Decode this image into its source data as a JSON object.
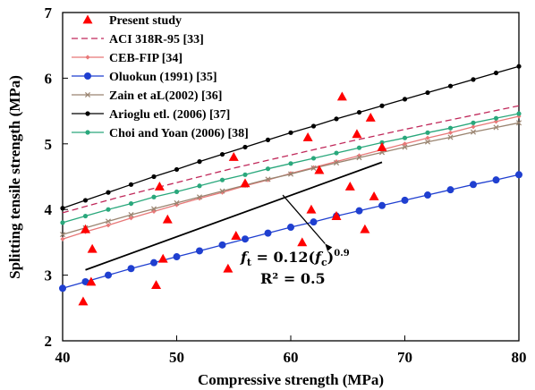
{
  "chart_data": {
    "type": "scatter",
    "xlabel": "Compressive strength (MPa)",
    "ylabel": "Splitting tensile strength (MPa)",
    "xlim": [
      40,
      80
    ],
    "ylim": [
      2,
      7
    ],
    "x_ticks": [
      "40",
      "50",
      "60",
      "70",
      "80"
    ],
    "y_ticks": [
      "2",
      "3",
      "4",
      "5",
      "6",
      "7"
    ],
    "legend_position": "top-left",
    "grid": false,
    "scatter_series": {
      "name": "Present study",
      "color": "#ff0000",
      "marker": "triangle",
      "points": [
        [
          41.8,
          2.6
        ],
        [
          42.0,
          3.7
        ],
        [
          42.5,
          2.9
        ],
        [
          42.6,
          3.4
        ],
        [
          48.2,
          2.85
        ],
        [
          48.5,
          4.35
        ],
        [
          48.8,
          3.25
        ],
        [
          49.2,
          3.85
        ],
        [
          54.5,
          3.1
        ],
        [
          55.0,
          4.8
        ],
        [
          55.2,
          3.6
        ],
        [
          56.0,
          4.4
        ],
        [
          61.0,
          3.5
        ],
        [
          61.5,
          5.1
        ],
        [
          61.8,
          4.0
        ],
        [
          62.5,
          4.6
        ],
        [
          64.0,
          3.9
        ],
        [
          64.5,
          5.72
        ],
        [
          65.2,
          4.35
        ],
        [
          65.8,
          5.15
        ],
        [
          66.5,
          3.7
        ],
        [
          67.0,
          5.4
        ],
        [
          67.3,
          4.2
        ],
        [
          68.0,
          4.95
        ]
      ]
    },
    "series": [
      {
        "name": "ACI 318R-95 [33]",
        "color": "#c0285a",
        "style": "dashed",
        "marker": "none",
        "x": [
          40,
          45,
          50,
          55,
          60,
          65,
          70,
          75,
          80
        ],
        "y": [
          3.95,
          4.19,
          4.41,
          4.63,
          4.83,
          5.03,
          5.22,
          5.4,
          5.58
        ]
      },
      {
        "name": "CEB-FIP [34]",
        "color": "#e87878",
        "style": "solid",
        "marker": "diamond",
        "x": [
          40,
          42,
          44,
          46,
          48,
          50,
          52,
          54,
          56,
          58,
          60,
          62,
          64,
          66,
          68,
          70,
          72,
          74,
          76,
          78,
          80
        ],
        "y": [
          3.55,
          3.66,
          3.76,
          3.87,
          3.97,
          4.07,
          4.17,
          4.26,
          4.36,
          4.45,
          4.55,
          4.64,
          4.73,
          4.82,
          4.91,
          5.0,
          5.09,
          5.17,
          5.26,
          5.34,
          5.42
        ]
      },
      {
        "name": "Oluokun (1991) [35]",
        "color": "#1f3fd0",
        "style": "solid",
        "marker": "circle",
        "x": [
          40,
          42,
          44,
          46,
          48,
          50,
          52,
          54,
          56,
          58,
          60,
          62,
          64,
          66,
          68,
          70,
          72,
          74,
          76,
          78,
          80
        ],
        "y": [
          2.8,
          2.9,
          3.0,
          3.1,
          3.19,
          3.28,
          3.37,
          3.46,
          3.55,
          3.64,
          3.73,
          3.81,
          3.9,
          3.98,
          4.06,
          4.14,
          4.22,
          4.3,
          4.38,
          4.45,
          4.53
        ]
      },
      {
        "name": "Zain et aL(2002) [36]",
        "color": "#9a8470",
        "style": "solid",
        "marker": "cross",
        "x": [
          40,
          42,
          44,
          46,
          48,
          50,
          52,
          54,
          56,
          58,
          60,
          62,
          64,
          66,
          68,
          70,
          72,
          74,
          76,
          78,
          80
        ],
        "y": [
          3.62,
          3.72,
          3.82,
          3.92,
          4.01,
          4.1,
          4.19,
          4.28,
          4.37,
          4.46,
          4.54,
          4.63,
          4.71,
          4.79,
          4.87,
          4.95,
          5.03,
          5.1,
          5.18,
          5.25,
          5.32
        ]
      },
      {
        "name": "Arioglu etl. (2006) [37]",
        "color": "#000000",
        "style": "solid",
        "marker": "circle",
        "x": [
          40,
          42,
          44,
          46,
          48,
          50,
          52,
          54,
          56,
          58,
          60,
          62,
          64,
          66,
          68,
          70,
          72,
          74,
          76,
          78,
          80
        ],
        "y": [
          4.02,
          4.14,
          4.26,
          4.38,
          4.5,
          4.61,
          4.73,
          4.84,
          4.95,
          5.06,
          5.17,
          5.27,
          5.38,
          5.48,
          5.58,
          5.68,
          5.78,
          5.88,
          5.98,
          6.08,
          6.18
        ]
      },
      {
        "name": "Choi and Yoan (2006) [38]",
        "color": "#2aa87c",
        "style": "solid",
        "marker": "circle",
        "x": [
          40,
          42,
          44,
          46,
          48,
          50,
          52,
          54,
          56,
          58,
          60,
          62,
          64,
          66,
          68,
          70,
          72,
          74,
          76,
          78,
          80
        ],
        "y": [
          3.8,
          3.9,
          4.0,
          4.09,
          4.19,
          4.27,
          4.36,
          4.45,
          4.53,
          4.62,
          4.7,
          4.78,
          4.86,
          4.94,
          5.02,
          5.09,
          5.17,
          5.24,
          5.32,
          5.39,
          5.46
        ]
      }
    ],
    "fit_line": {
      "name": "fit",
      "color": "#000000",
      "x": [
        42,
        68
      ],
      "y": [
        3.08,
        4.72
      ]
    },
    "annotation": {
      "equation": "f_t = 0.12(f_c)^0.9",
      "r2": "R² = 0.5",
      "arrow_from": [
        63.0,
        3.48
      ],
      "arrow_to": [
        59.3,
        4.22
      ],
      "text_anchor": [
        60,
        3.2
      ]
    }
  }
}
